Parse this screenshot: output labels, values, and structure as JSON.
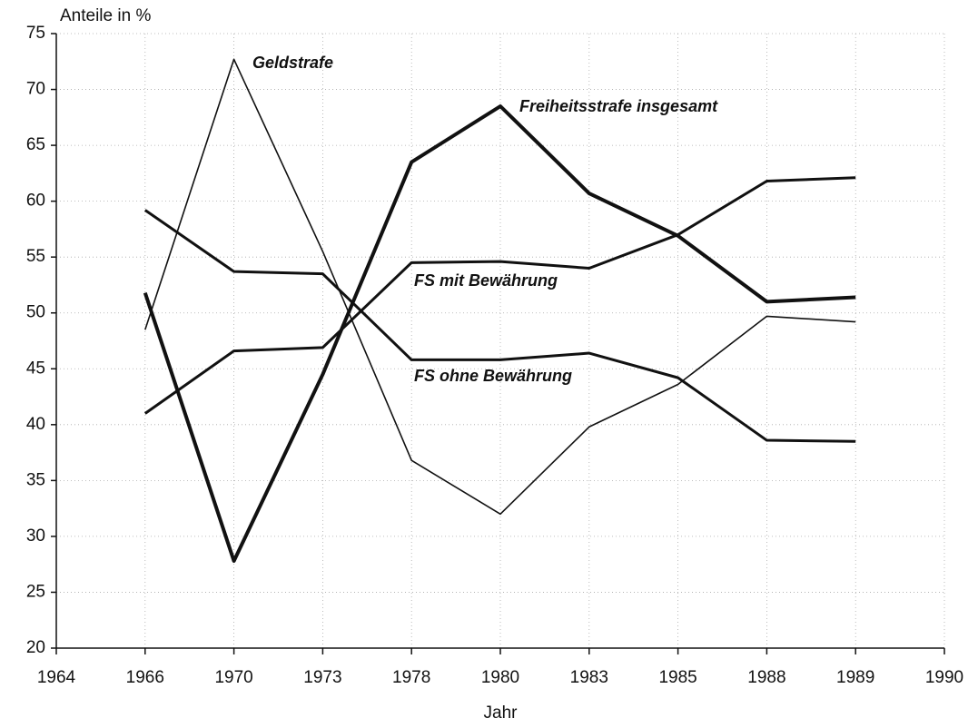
{
  "chart_data": {
    "type": "line",
    "y_label": "Anteile in %",
    "x_label": "Jahr",
    "categories": [
      "1964",
      "1966",
      "1970",
      "1973",
      "1978",
      "1980",
      "1983",
      "1985",
      "1988",
      "1989",
      "1990"
    ],
    "series": [
      {
        "name": "Geldstrafe",
        "color": "#111111",
        "line_width": 1.6,
        "values": [
          null,
          48.5,
          72.7,
          55.5,
          36.8,
          32,
          39.8,
          43.6,
          49.7,
          49.2,
          null
        ]
      },
      {
        "name": "Freiheitsstrafe insgesamt",
        "color": "#111111",
        "line_width": 4,
        "values": [
          null,
          51.8,
          27.8,
          44.5,
          63.5,
          68.5,
          60.7,
          56.9,
          51,
          51.4,
          null
        ]
      },
      {
        "name": "FS mit Bewährung",
        "color": "#111111",
        "line_width": 3,
        "values": [
          null,
          41,
          46.6,
          46.9,
          54.5,
          54.6,
          54,
          57,
          61.8,
          62.1,
          null
        ]
      },
      {
        "name": "FS ohne Bewährung",
        "color": "#111111",
        "line_width": 3,
        "values": [
          null,
          59.2,
          53.7,
          53.5,
          45.8,
          45.8,
          46.4,
          44.2,
          38.6,
          38.5,
          null
        ]
      }
    ],
    "ylim": [
      20,
      75
    ],
    "yticks": [
      20,
      25,
      30,
      35,
      40,
      45,
      50,
      55,
      60,
      65,
      70,
      75
    ],
    "grid": true
  }
}
